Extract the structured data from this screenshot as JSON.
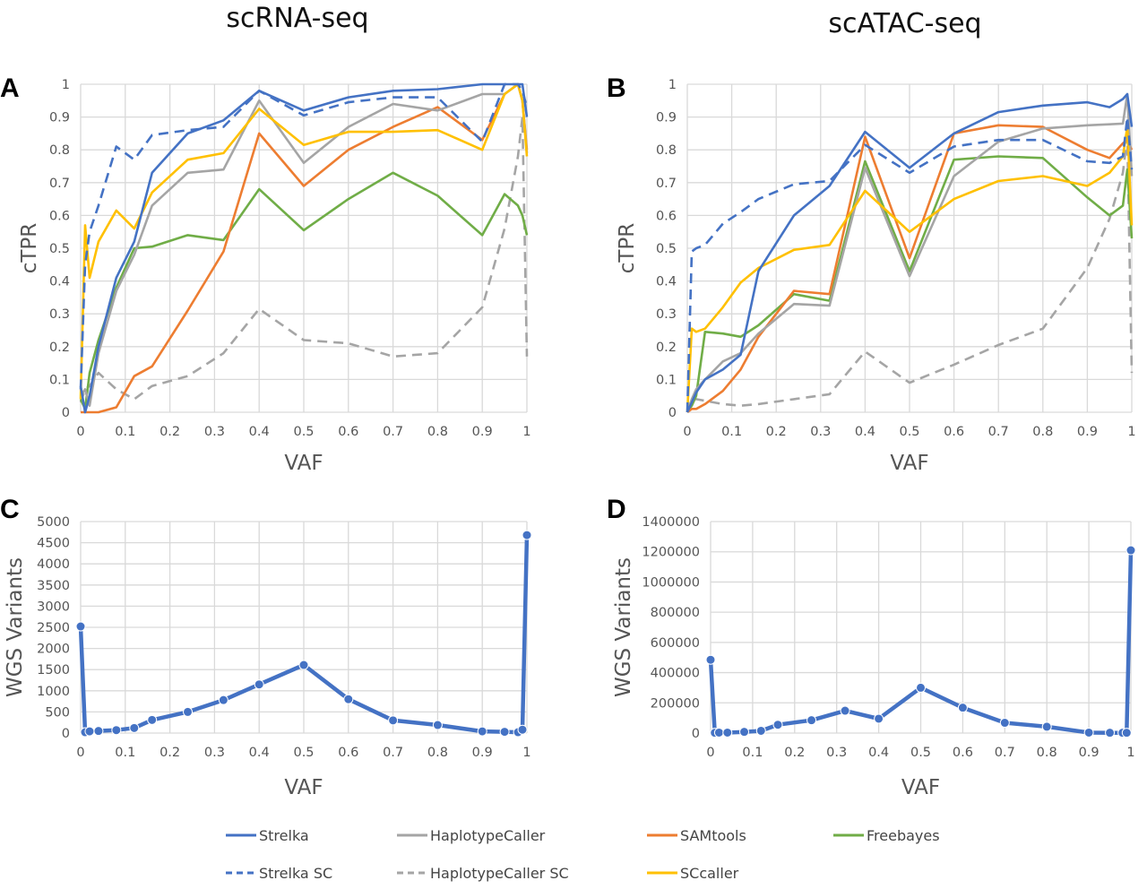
{
  "titles": {
    "left": "scRNA-seq",
    "right": "scATAC-seq"
  },
  "legend": [
    {
      "name": "Strelka",
      "color": "#4472C4",
      "dash": false
    },
    {
      "name": "HaplotypeCaller",
      "color": "#A5A5A5",
      "dash": false
    },
    {
      "name": "SAMtools",
      "color": "#ED7D31",
      "dash": false
    },
    {
      "name": "Freebayes",
      "color": "#70AD47",
      "dash": false
    },
    {
      "name": "Strelka SC",
      "color": "#4472C4",
      "dash": true
    },
    {
      "name": "HaplotypeCaller SC",
      "color": "#A5A5A5",
      "dash": true
    },
    {
      "name": "SCcaller",
      "color": "#FFC000",
      "dash": false
    }
  ],
  "chart_data": [
    {
      "panel": "A",
      "type": "line",
      "title": "scRNA-seq",
      "xlabel": "VAF",
      "ylabel": "cTPR",
      "xlim": [
        0,
        1
      ],
      "ylim": [
        0,
        1
      ],
      "xticks": [
        "0",
        "0.1",
        "0.2",
        "0.3",
        "0.4",
        "0.5",
        "0.6",
        "0.7",
        "0.8",
        "0.9",
        "1"
      ],
      "yticks": [
        "0",
        "0.1",
        "0.2",
        "0.3",
        "0.4",
        "0.5",
        "0.6",
        "0.7",
        "0.8",
        "0.9",
        "1"
      ],
      "grid": true,
      "x": [
        0,
        0.01,
        0.02,
        0.04,
        0.08,
        0.12,
        0.16,
        0.24,
        0.32,
        0.4,
        0.5,
        0.6,
        0.7,
        0.8,
        0.9,
        0.95,
        0.98,
        0.99,
        1
      ],
      "series": [
        {
          "name": "Strelka",
          "values": [
            0.08,
            0,
            0.05,
            0.2,
            0.41,
            0.52,
            0.73,
            0.85,
            0.89,
            0.98,
            0.92,
            0.96,
            0.98,
            0.985,
            1,
            1,
            1,
            1,
            0.9
          ]
        },
        {
          "name": "HaplotypeCaller",
          "values": [
            0.05,
            0.07,
            0.02,
            0.18,
            0.37,
            0.48,
            0.63,
            0.73,
            0.74,
            0.95,
            0.76,
            0.87,
            0.94,
            0.92,
            0.97,
            0.97,
            1,
            0.95,
            0.79
          ]
        },
        {
          "name": "SAMtools",
          "values": [
            0,
            0,
            0,
            0,
            0.015,
            0.11,
            0.14,
            0.31,
            0.49,
            0.85,
            0.69,
            0.8,
            0.87,
            0.93,
            0.83,
            0.97,
            1,
            0.95,
            0.8
          ]
        },
        {
          "name": "Freebayes",
          "values": [
            0.04,
            0.01,
            0.12,
            0.22,
            0.38,
            0.5,
            0.505,
            0.54,
            0.525,
            0.68,
            0.555,
            0.65,
            0.73,
            0.66,
            0.54,
            0.665,
            0.63,
            0.6,
            0.54
          ]
        },
        {
          "name": "Strelka SC",
          "values": [
            0.07,
            0.45,
            0.55,
            0.63,
            0.81,
            0.77,
            0.845,
            0.86,
            0.87,
            0.98,
            0.905,
            0.945,
            0.96,
            0.96,
            0.825,
            1,
            1,
            0.98,
            0.93
          ]
        },
        {
          "name": "HaplotypeCaller SC",
          "values": [
            0.03,
            0.07,
            0.08,
            0.12,
            0.07,
            0.04,
            0.08,
            0.11,
            0.18,
            0.315,
            0.22,
            0.21,
            0.17,
            0.18,
            0.32,
            0.56,
            0.78,
            0.9,
            0.17
          ]
        },
        {
          "name": "SCcaller",
          "values": [
            0.04,
            0.57,
            0.41,
            0.52,
            0.615,
            0.56,
            0.67,
            0.77,
            0.79,
            0.925,
            0.815,
            0.855,
            0.855,
            0.86,
            0.8,
            0.97,
            1,
            0.95,
            0.78
          ]
        }
      ]
    },
    {
      "panel": "B",
      "type": "line",
      "title": "scATAC-seq",
      "xlabel": "VAF",
      "ylabel": "cTPR",
      "xlim": [
        0,
        1
      ],
      "ylim": [
        0,
        1
      ],
      "xticks": [
        "0",
        "0.1",
        "0.2",
        "0.3",
        "0.4",
        "0.5",
        "0.6",
        "0.7",
        "0.8",
        "0.9",
        "1"
      ],
      "yticks": [
        "0",
        "0.1",
        "0.2",
        "0.3",
        "0.4",
        "0.5",
        "0.6",
        "0.7",
        "0.8",
        "0.9",
        "1"
      ],
      "grid": true,
      "x": [
        0,
        0.01,
        0.02,
        0.04,
        0.08,
        0.12,
        0.16,
        0.24,
        0.32,
        0.4,
        0.5,
        0.6,
        0.7,
        0.8,
        0.9,
        0.95,
        0.98,
        0.99,
        1
      ],
      "series": [
        {
          "name": "Strelka",
          "values": [
            0,
            0.03,
            0.06,
            0.1,
            0.13,
            0.175,
            0.43,
            0.6,
            0.69,
            0.855,
            0.745,
            0.85,
            0.915,
            0.935,
            0.945,
            0.93,
            0.955,
            0.97,
            0.87
          ]
        },
        {
          "name": "HaplotypeCaller",
          "values": [
            0,
            0.04,
            0.07,
            0.1,
            0.155,
            0.18,
            0.24,
            0.33,
            0.325,
            0.745,
            0.415,
            0.72,
            0.825,
            0.865,
            0.875,
            0.878,
            0.88,
            0.97,
            0.72
          ]
        },
        {
          "name": "SAMtools",
          "values": [
            0,
            0.01,
            0.01,
            0.025,
            0.065,
            0.13,
            0.23,
            0.37,
            0.36,
            0.84,
            0.47,
            0.85,
            0.875,
            0.87,
            0.8,
            0.775,
            0.82,
            0.83,
            0.8
          ]
        },
        {
          "name": "Freebayes",
          "values": [
            0,
            0.02,
            0.05,
            0.245,
            0.24,
            0.23,
            0.265,
            0.36,
            0.34,
            0.765,
            0.43,
            0.77,
            0.78,
            0.775,
            0.655,
            0.6,
            0.63,
            0.74,
            0.53
          ]
        },
        {
          "name": "Strelka SC",
          "values": [
            0,
            0.49,
            0.5,
            0.51,
            0.575,
            0.61,
            0.65,
            0.695,
            0.705,
            0.815,
            0.73,
            0.81,
            0.83,
            0.83,
            0.765,
            0.76,
            0.78,
            0.9,
            0.74
          ]
        },
        {
          "name": "HaplotypeCaller SC",
          "values": [
            0,
            0.04,
            0.04,
            0.035,
            0.025,
            0.02,
            0.025,
            0.04,
            0.055,
            0.185,
            0.09,
            0.145,
            0.205,
            0.255,
            0.44,
            0.59,
            0.73,
            0.84,
            0.12
          ]
        },
        {
          "name": "SCcaller",
          "values": [
            0,
            0.255,
            0.245,
            0.255,
            0.32,
            0.395,
            0.44,
            0.495,
            0.51,
            0.675,
            0.55,
            0.65,
            0.705,
            0.72,
            0.69,
            0.73,
            0.78,
            0.87,
            0.57
          ]
        }
      ]
    },
    {
      "panel": "C",
      "type": "line",
      "xlabel": "VAF",
      "ylabel": "WGS Variants",
      "xlim": [
        0,
        1
      ],
      "ylim": [
        0,
        5000
      ],
      "xticks": [
        "0",
        "0.1",
        "0.2",
        "0.3",
        "0.4",
        "0.5",
        "0.6",
        "0.7",
        "0.8",
        "0.9",
        "1"
      ],
      "yticks": [
        "0",
        "500",
        "1000",
        "1500",
        "2000",
        "2500",
        "3000",
        "3500",
        "4000",
        "4500",
        "5000"
      ],
      "grid": true,
      "x": [
        0,
        0.01,
        0.02,
        0.04,
        0.08,
        0.12,
        0.16,
        0.24,
        0.32,
        0.4,
        0.5,
        0.6,
        0.7,
        0.8,
        0.9,
        0.95,
        0.98,
        0.99,
        1
      ],
      "series": [
        {
          "name": "WGS Variants",
          "color": "#4472C4",
          "markers": true,
          "values": [
            2520,
            20,
            40,
            50,
            70,
            120,
            310,
            500,
            780,
            1150,
            1610,
            800,
            300,
            190,
            40,
            30,
            20,
            80,
            4680
          ]
        }
      ]
    },
    {
      "panel": "D",
      "type": "line",
      "xlabel": "VAF",
      "ylabel": "WGS Variants",
      "xlim": [
        0,
        1
      ],
      "ylim": [
        0,
        1400000
      ],
      "xticks": [
        "0",
        "0.1",
        "0.2",
        "0.3",
        "0.4",
        "0.5",
        "0.6",
        "0.7",
        "0.8",
        "0.9",
        "1"
      ],
      "yticks": [
        "0",
        "200000",
        "400000",
        "600000",
        "800000",
        "1000000",
        "1200000",
        "1400000"
      ],
      "grid": true,
      "x": [
        0,
        0.01,
        0.02,
        0.04,
        0.08,
        0.12,
        0.16,
        0.24,
        0.32,
        0.4,
        0.5,
        0.6,
        0.7,
        0.8,
        0.9,
        0.95,
        0.98,
        0.99,
        1
      ],
      "series": [
        {
          "name": "WGS Variants",
          "color": "#4472C4",
          "markers": true,
          "values": [
            485000,
            2000,
            3000,
            3000,
            8000,
            15000,
            55000,
            85000,
            148000,
            95000,
            300000,
            168000,
            68000,
            42000,
            3000,
            2000,
            2000,
            2000,
            1210000
          ]
        }
      ]
    }
  ]
}
